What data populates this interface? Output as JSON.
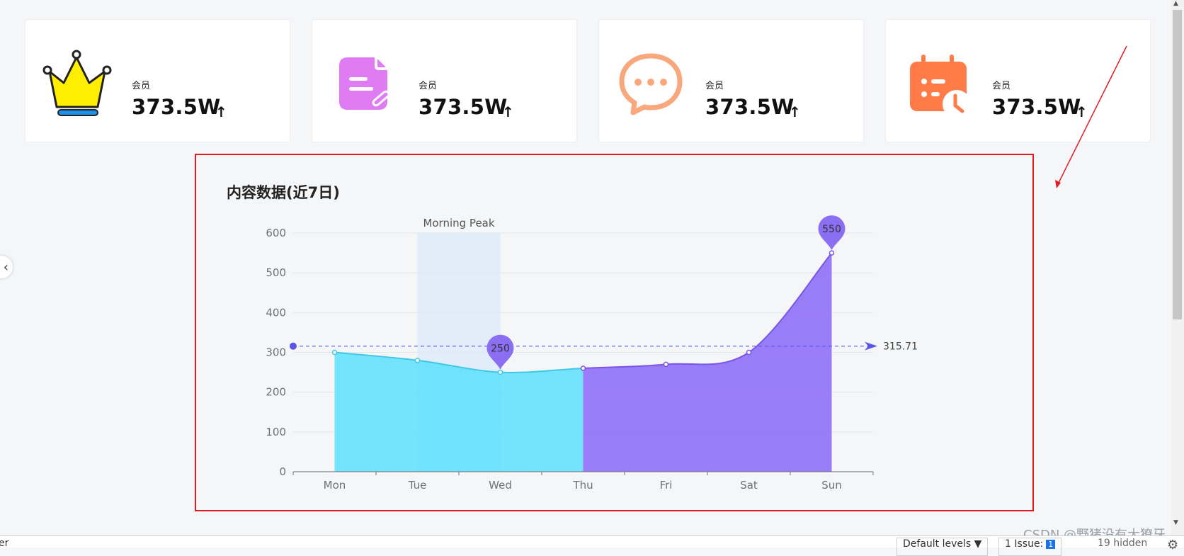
{
  "stats": [
    {
      "label": "会员",
      "value": "373.5W",
      "arrow": "↑",
      "icon": "crown-icon"
    },
    {
      "label": "会员",
      "value": "373.5W",
      "arrow": "↑",
      "icon": "document-edit-icon"
    },
    {
      "label": "会员",
      "value": "373.5W",
      "arrow": "↑",
      "icon": "chat-bubble-icon"
    },
    {
      "label": "会员",
      "value": "373.5W",
      "arrow": "↑",
      "icon": "calendar-clock-icon"
    }
  ],
  "colors": {
    "cyan_area": "#5ce1fb",
    "cyan_line": "#3fc9e6",
    "purple_area": "#8f6ff6",
    "purple_line": "#7b56e6",
    "mark_purple": "#8c6ef2",
    "markline_color": "#5b55e6",
    "markarea_color": "#dbe9fb",
    "annotation_red": "#e01b24",
    "crown_yellow": "#ffee00",
    "crown_blue": "#1e90e6",
    "doc_pink": "#e07cf3",
    "chat_orange": "#f9a77c",
    "calendar_orange": "#ff7b47"
  },
  "chart_data": {
    "type": "area",
    "title": "内容数据(近7日)",
    "categories": [
      "Mon",
      "Tue",
      "Wed",
      "Thu",
      "Fri",
      "Sat",
      "Sun"
    ],
    "series": [
      {
        "values": [
          300,
          280,
          250,
          260,
          270,
          300,
          550
        ]
      }
    ],
    "yaxis_ticks": [
      "600",
      "500",
      "400",
      "300",
      "200",
      "100",
      "0"
    ],
    "ylim": [
      0,
      600
    ],
    "grid": true,
    "mark_points": [
      {
        "category": "Wed",
        "value": 250,
        "label": "250"
      },
      {
        "category": "Sun",
        "value": 550,
        "label": "550"
      }
    ],
    "mark_line": {
      "value": 315.71,
      "label": "315.71"
    },
    "mark_area": {
      "label": "Morning Peak",
      "from": "Tue",
      "to": "Wed"
    },
    "piece_split": {
      "from_category": "Thu",
      "low_color_range": "Mon–Thu",
      "high_color_range": "Thu–Sun"
    }
  },
  "watermark": "CSDN @野猪没有大獠牙",
  "devtools": {
    "console_fragment": "er",
    "levels": "Default levels ▼",
    "issues_label": "1 Issue:",
    "issues_count": "1",
    "hidden": "19 hidden"
  },
  "nav": {
    "left_handle": "‹"
  }
}
